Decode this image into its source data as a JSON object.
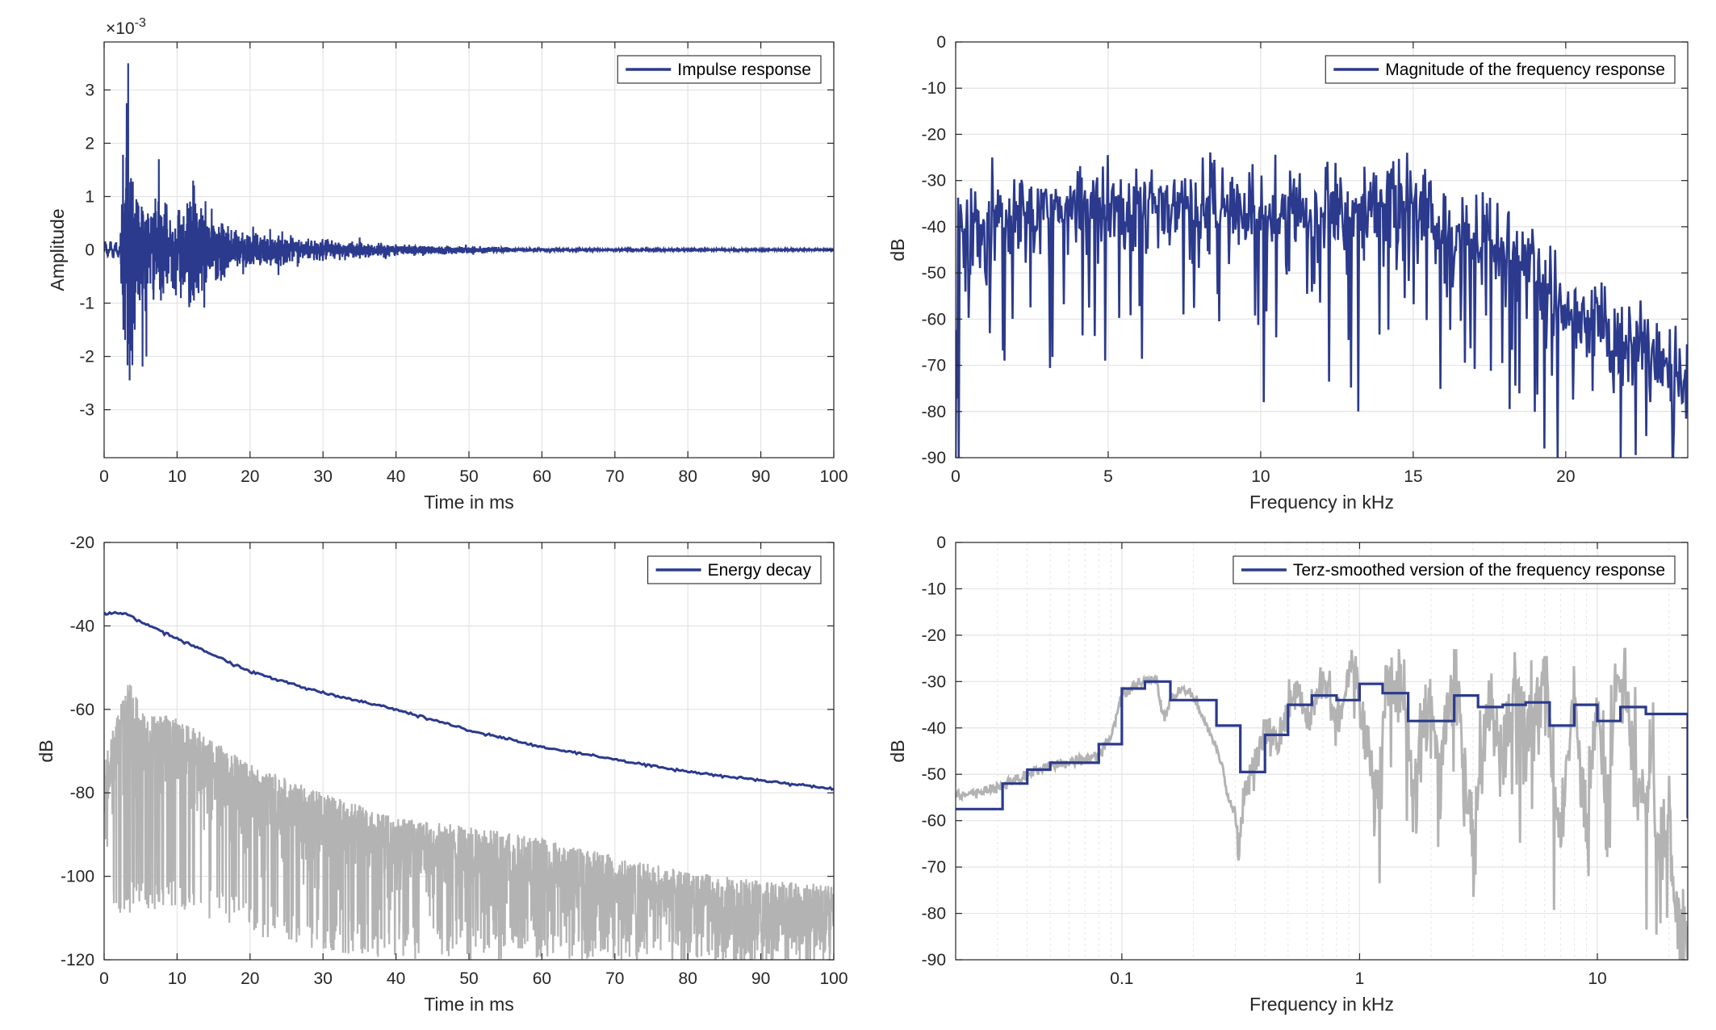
{
  "colors": {
    "series_main": "#2b3a8c",
    "series_gray": "#b3b3b3",
    "axis": "#262626",
    "grid": "#e3e3e3"
  },
  "chart_data": [
    {
      "id": "impulse",
      "type": "line",
      "xlabel": "Time in ms",
      "ylabel": "Amplitude",
      "exponent_label": "×10",
      "exponent_power": "-3",
      "xlim": [
        0,
        100
      ],
      "ylim": [
        -3.9,
        3.9
      ],
      "xticks": [
        0,
        10,
        20,
        30,
        40,
        50,
        60,
        70,
        80,
        90,
        100
      ],
      "yticks": [
        -3,
        -2,
        -1,
        0,
        1,
        2,
        3
      ],
      "legend": "top-right",
      "grid": true,
      "series": [
        {
          "name": "Impulse response",
          "color": "#2b3a8c",
          "envelope": {
            "points": [
              [
                0,
                0.1
              ],
              [
                1.5,
                0.15
              ],
              [
                2.2,
                0.6
              ],
              [
                3.1,
                3.5
              ],
              [
                4.5,
                1.5
              ],
              [
                6,
                1.0
              ],
              [
                8,
                0.9
              ],
              [
                10,
                0.8
              ],
              [
                12,
                1.3
              ],
              [
                15,
                0.6
              ],
              [
                20,
                0.35
              ],
              [
                30,
                0.2
              ],
              [
                40,
                0.12
              ],
              [
                50,
                0.07
              ],
              [
                60,
                0.03
              ],
              [
                70,
                0.015
              ],
              [
                100,
                0.01
              ]
            ],
            "notable_peaks": [
              [
                3.3,
                3.5
              ],
              [
                3.1,
                2.75
              ],
              [
                3.5,
                -2.45
              ],
              [
                5.8,
                -2.0
              ],
              [
                7.5,
                1.7
              ],
              [
                12.2,
                1.3
              ],
              [
                4.2,
                -1.5
              ]
            ]
          }
        }
      ]
    },
    {
      "id": "magnitude",
      "type": "line",
      "xlabel": "Frequency in kHz",
      "ylabel": "dB",
      "xlim": [
        0,
        24
      ],
      "ylim": [
        -90,
        0
      ],
      "xticks": [
        0,
        5,
        10,
        15,
        20
      ],
      "yticks": [
        0,
        -10,
        -20,
        -30,
        -40,
        -50,
        -60,
        -70,
        -80,
        -90
      ],
      "legend": "top-right",
      "grid": true,
      "series": [
        {
          "name": "Magnitude of the frequency response",
          "color": "#2b3a8c",
          "trend": [
            [
              0,
              -42
            ],
            [
              2,
              -38
            ],
            [
              5,
              -35
            ],
            [
              8,
              -36
            ],
            [
              12,
              -38
            ],
            [
              14.8,
              -35
            ],
            [
              16,
              -40
            ],
            [
              18,
              -45
            ],
            [
              20,
              -58
            ],
            [
              22,
              -65
            ],
            [
              24,
              -75
            ]
          ],
          "notable_dips": [
            [
              0.1,
              -90
            ],
            [
              1.6,
              -69
            ],
            [
              4.9,
              -69
            ],
            [
              10.1,
              -78
            ],
            [
              13.2,
              -80
            ],
            [
              19.3,
              -88
            ],
            [
              21.8,
              -90
            ],
            [
              23.5,
              -90
            ]
          ],
          "notable_peaks": [
            [
              8.1,
              -25
            ],
            [
              14.8,
              -24
            ],
            [
              13.4,
              -27
            ],
            [
              1.2,
              -25
            ]
          ]
        }
      ]
    },
    {
      "id": "energy",
      "type": "line",
      "xlabel": "Time in ms",
      "ylabel": "dB",
      "xlim": [
        0,
        100
      ],
      "ylim": [
        -120,
        -20
      ],
      "xticks": [
        0,
        10,
        20,
        30,
        40,
        50,
        60,
        70,
        80,
        90,
        100
      ],
      "yticks": [
        -20,
        -40,
        -60,
        -80,
        -100,
        -120
      ],
      "legend": "top-right",
      "grid": true,
      "series": [
        {
          "name": "Energy decay",
          "color": "#2b3a8c",
          "x": [
            0,
            3,
            5,
            10,
            20,
            30,
            40,
            50,
            60,
            70,
            80,
            90,
            100
          ],
          "y": [
            -37,
            -37,
            -39,
            -43,
            -51,
            -56,
            -60,
            -65,
            -69,
            -72,
            -75,
            -77,
            -79
          ]
        },
        {
          "color": "#b3b3b3",
          "upper_envelope": [
            [
              0,
              -72
            ],
            [
              3.5,
              -52
            ],
            [
              5,
              -60
            ],
            [
              10,
              -62
            ],
            [
              20,
              -73
            ],
            [
              30,
              -80
            ],
            [
              40,
              -86
            ],
            [
              50,
              -88
            ],
            [
              60,
              -91
            ],
            [
              70,
              -95
            ],
            [
              80,
              -99
            ],
            [
              90,
              -101
            ],
            [
              100,
              -102
            ]
          ],
          "lower_envelope": [
            [
              0,
              -110
            ],
            [
              10,
              -108
            ],
            [
              20,
              -114
            ],
            [
              30,
              -118
            ],
            [
              40,
              -120
            ],
            [
              100,
              -120
            ]
          ]
        }
      ]
    },
    {
      "id": "terz",
      "type": "line",
      "xscale": "log",
      "xlabel": "Frequency in kHz",
      "ylabel": "dB",
      "xlim": [
        0.02,
        24
      ],
      "ylim": [
        -90,
        0
      ],
      "xtick_values": [
        0.1,
        1,
        10
      ],
      "xtick_labels": [
        "0.1",
        "1",
        "10"
      ],
      "yticks": [
        0,
        -10,
        -20,
        -30,
        -40,
        -50,
        -60,
        -70,
        -80,
        -90
      ],
      "legend": "top-right",
      "grid": true,
      "series": [
        {
          "name": "Terz-smoothed version of the frequency response",
          "color": "#2b3a8c",
          "step_edges": [
            0.02,
            0.0315,
            0.04,
            0.05,
            0.063,
            0.08,
            0.1,
            0.125,
            0.16,
            0.2,
            0.25,
            0.315,
            0.4,
            0.5,
            0.63,
            0.8,
            1.0,
            1.25,
            1.6,
            2.0,
            2.5,
            3.15,
            4.0,
            5.0,
            6.3,
            8.0,
            10,
            12.5,
            16.0,
            24
          ],
          "step_values": [
            -57.5,
            -52,
            -49,
            -47.5,
            -47.5,
            -43.5,
            -31.5,
            -30,
            -34,
            -34,
            -39.5,
            -49.5,
            -41.5,
            -35,
            -33,
            -34,
            -30.5,
            -32.5,
            -38.5,
            -38.5,
            -33,
            -35.5,
            -35,
            -34.5,
            -39.5,
            -35,
            -38.5,
            -35.5,
            -37,
            -59.5
          ]
        },
        {
          "color": "#b3b3b3",
          "points": [
            [
              0.02,
              -54.5
            ],
            [
              0.025,
              -54
            ],
            [
              0.03,
              -53
            ],
            [
              0.04,
              -50
            ],
            [
              0.05,
              -48
            ],
            [
              0.06,
              -47.5
            ],
            [
              0.08,
              -46
            ],
            [
              0.09,
              -42
            ],
            [
              0.1,
              -33
            ],
            [
              0.12,
              -30
            ],
            [
              0.13,
              -29.5
            ],
            [
              0.14,
              -30
            ],
            [
              0.15,
              -38
            ],
            [
              0.16,
              -34
            ],
            [
              0.18,
              -32
            ],
            [
              0.2,
              -33
            ],
            [
              0.23,
              -40
            ],
            [
              0.26,
              -47
            ],
            [
              0.28,
              -55
            ],
            [
              0.3,
              -58
            ],
            [
              0.31,
              -69
            ],
            [
              0.33,
              -50
            ],
            [
              0.36,
              -48
            ],
            [
              0.4,
              -40
            ],
            [
              0.45,
              -44
            ],
            [
              0.5,
              -35
            ],
            [
              0.55,
              -31
            ],
            [
              0.6,
              -40
            ],
            [
              0.7,
              -29
            ],
            [
              0.8,
              -38
            ],
            [
              0.9,
              -30
            ],
            [
              0.95,
              -24
            ],
            [
              1.0,
              -34
            ],
            [
              1.2,
              -55
            ],
            [
              1.3,
              -31
            ],
            [
              1.5,
              -29
            ],
            [
              1.7,
              -52
            ],
            [
              1.9,
              -36
            ],
            [
              2.2,
              -45
            ],
            [
              2.5,
              -30
            ],
            [
              3,
              -65
            ],
            [
              3.5,
              -35
            ],
            [
              4,
              -47
            ],
            [
              4.5,
              -30
            ],
            [
              5,
              -43
            ],
            [
              6,
              -28
            ],
            [
              7,
              -64
            ],
            [
              8,
              -31
            ],
            [
              9,
              -62
            ],
            [
              10,
              -33
            ],
            [
              11,
              -60
            ],
            [
              12,
              -30
            ],
            [
              13,
              -25
            ],
            [
              14,
              -45
            ],
            [
              16,
              -57
            ],
            [
              17,
              -40
            ],
            [
              18,
              -70
            ],
            [
              20,
              -60
            ],
            [
              22,
              -83
            ],
            [
              23,
              -76
            ],
            [
              24,
              -88
            ]
          ]
        }
      ]
    }
  ]
}
